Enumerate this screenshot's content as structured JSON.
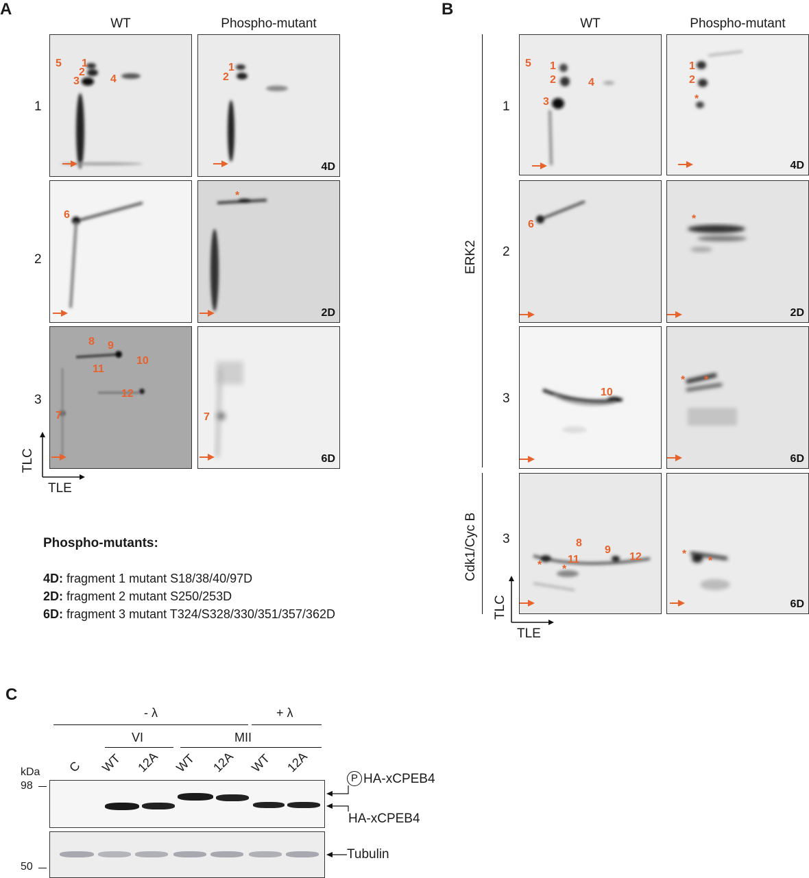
{
  "panelA": {
    "letter": "A",
    "col_wt": "WT",
    "col_mut": "Phospho-mutant",
    "rows": [
      "1",
      "2",
      "3"
    ],
    "tags": [
      "4D",
      "2D",
      "6D"
    ],
    "axis_y": "TLC",
    "axis_x": "TLE",
    "spots": {
      "r1_wt": [
        "5",
        "1",
        "2",
        "3",
        "4"
      ],
      "r1_mut": [
        "1",
        "2"
      ],
      "r2_wt": [
        "6"
      ],
      "r2_mut": [
        "*"
      ],
      "r3_wt": [
        "8",
        "9",
        "10",
        "11",
        "12",
        "7"
      ],
      "r3_mut": [
        "7"
      ]
    }
  },
  "legend": {
    "heading": "Phospho-mutants:",
    "lines": [
      {
        "key": "4D:",
        "text": " fragment 1 mutant S18/38/40/97D"
      },
      {
        "key": "2D:",
        "text": " fragment 2 mutant S250/253D"
      },
      {
        "key": "6D:",
        "text": " fragment 3 mutant T324/S328/330/351/357/362D"
      }
    ]
  },
  "panelB": {
    "letter": "B",
    "col_wt": "WT",
    "col_mut": "Phospho-mutant",
    "group_erk": "ERK2",
    "group_cdk": "Cdk1/Cyc B",
    "rows": [
      "1",
      "2",
      "3",
      "3"
    ],
    "tags": [
      "4D",
      "2D",
      "6D",
      "6D"
    ],
    "axis_y": "TLC",
    "axis_x": "TLE",
    "spots": {
      "r1_wt": [
        "5",
        "1",
        "2",
        "4",
        "3"
      ],
      "r1_mut": [
        "1",
        "2",
        "*"
      ],
      "r2_wt": [
        "6"
      ],
      "r2_mut": [
        "*"
      ],
      "r3_wt": [
        "10"
      ],
      "r3_mut": [
        "*",
        "*"
      ],
      "r4_wt": [
        "8",
        "9",
        "12",
        "*",
        "11",
        "*"
      ],
      "r4_mut": [
        "*",
        "*"
      ]
    }
  },
  "panelC": {
    "letter": "C",
    "minus_lambda": "- λ",
    "plus_lambda": "+ λ",
    "vi": "VI",
    "mii": "MII",
    "lanes": [
      "C",
      "WT",
      "12A",
      "WT",
      "12A",
      "WT",
      "12A"
    ],
    "kda": "kDa",
    "mw98": "98",
    "mw50": "50",
    "p_symbol": "P",
    "label_phospho": "HA-xCPEB4",
    "label_unphospho": "HA-xCPEB4",
    "label_tubulin": "Tubulin"
  }
}
